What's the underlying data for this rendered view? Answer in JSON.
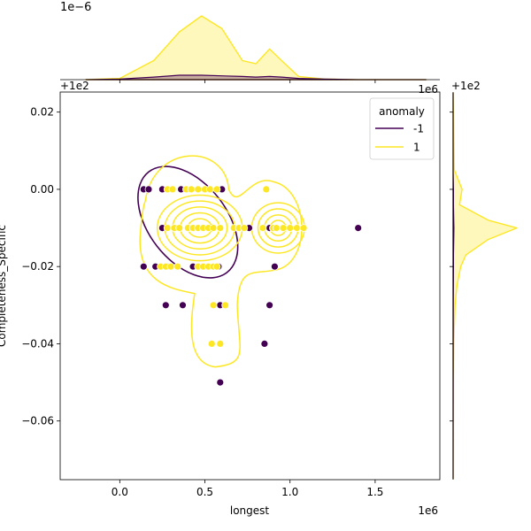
{
  "chart_data": {
    "type": "scatter",
    "title": "",
    "xlabel": "longest",
    "ylabel": "Completeness_Specific",
    "x_offset_label": "1e6",
    "y_offset_label": "+1e2",
    "y_offset_label_top": "+1e2",
    "y_offset_label_right": "+1e2",
    "x_scale_label_right": "1e6",
    "top_marginal_scale_label": "1e−6",
    "xlim": [
      -350000,
      1880000
    ],
    "ylim": [
      -0.0752,
      0.0252
    ],
    "x_ticks": [
      0,
      500000,
      1000000,
      1500000
    ],
    "x_tick_labels": [
      "0.0",
      "0.5",
      "1.0",
      "1.5"
    ],
    "y_ticks": [
      0.02,
      0.0,
      -0.02,
      -0.04,
      -0.06
    ],
    "y_tick_labels": [
      "0.02",
      "0.00",
      "−0.02",
      "−0.04",
      "−0.06"
    ],
    "grid": false,
    "legend": {
      "title": "anomaly",
      "placement": "top-right",
      "entries": [
        {
          "label": "-1",
          "color": "#440154"
        },
        {
          "label": "1",
          "color": "#fde725"
        }
      ]
    },
    "series": [
      {
        "name": "-1",
        "color": "#440154",
        "points": [
          [
            140000,
            0.0
          ],
          [
            170000,
            0.0
          ],
          [
            250000,
            0.0
          ],
          [
            360000,
            0.0
          ],
          [
            600000,
            0.0
          ],
          [
            250000,
            -0.01
          ],
          [
            760000,
            -0.01
          ],
          [
            880000,
            -0.01
          ],
          [
            1400000,
            -0.01
          ],
          [
            140000,
            -0.02
          ],
          [
            210000,
            -0.02
          ],
          [
            280000,
            -0.02
          ],
          [
            430000,
            -0.02
          ],
          [
            580000,
            -0.02
          ],
          [
            910000,
            -0.02
          ],
          [
            270000,
            -0.03
          ],
          [
            370000,
            -0.03
          ],
          [
            590000,
            -0.03
          ],
          [
            880000,
            -0.03
          ],
          [
            850000,
            -0.04
          ],
          [
            590000,
            -0.05
          ]
        ]
      },
      {
        "name": "1",
        "color": "#fde725",
        "points": [
          [
            280000,
            0.0
          ],
          [
            310000,
            0.0
          ],
          [
            390000,
            0.0
          ],
          [
            420000,
            0.0
          ],
          [
            460000,
            0.0
          ],
          [
            500000,
            0.0
          ],
          [
            530000,
            0.0
          ],
          [
            570000,
            0.0
          ],
          [
            860000,
            0.0
          ],
          [
            280000,
            -0.01
          ],
          [
            320000,
            -0.01
          ],
          [
            350000,
            -0.01
          ],
          [
            400000,
            -0.01
          ],
          [
            430000,
            -0.01
          ],
          [
            460000,
            -0.01
          ],
          [
            490000,
            -0.01
          ],
          [
            520000,
            -0.01
          ],
          [
            550000,
            -0.01
          ],
          [
            590000,
            -0.01
          ],
          [
            670000,
            -0.01
          ],
          [
            700000,
            -0.01
          ],
          [
            730000,
            -0.01
          ],
          [
            840000,
            -0.01
          ],
          [
            900000,
            -0.01
          ],
          [
            920000,
            -0.01
          ],
          [
            960000,
            -0.01
          ],
          [
            1000000,
            -0.01
          ],
          [
            1040000,
            -0.01
          ],
          [
            1080000,
            -0.01
          ],
          [
            240000,
            -0.02
          ],
          [
            270000,
            -0.02
          ],
          [
            300000,
            -0.02
          ],
          [
            340000,
            -0.02
          ],
          [
            460000,
            -0.02
          ],
          [
            490000,
            -0.02
          ],
          [
            520000,
            -0.02
          ],
          [
            550000,
            -0.02
          ],
          [
            570000,
            -0.02
          ],
          [
            550000,
            -0.03
          ],
          [
            620000,
            -0.03
          ],
          [
            540000,
            -0.04
          ],
          [
            590000,
            -0.04
          ]
        ]
      }
    ],
    "contours": [
      {
        "name": "-1",
        "color": "#440154",
        "cx": 400000,
        "cy": -0.0085,
        "rx": 230000,
        "ry": 0.0165,
        "rotation_deg": -38,
        "levels": [
          1
        ]
      },
      {
        "name": "1",
        "color": "#fde725",
        "blobs": [
          {
            "cx": 470000,
            "cy": -0.01,
            "rx": 250000,
            "ry": 0.0085,
            "levels": [
              1,
              0.82,
              0.64,
              0.46,
              0.28
            ]
          },
          {
            "cx": 930000,
            "cy": -0.01,
            "rx": 155000,
            "ry": 0.0065,
            "levels": [
              1,
              0.76,
              0.52,
              0.3
            ]
          }
        ],
        "outer_envelope": true
      }
    ],
    "top_marginal": {
      "x": [
        -200000,
        0,
        200000,
        350000,
        480000,
        600000,
        720000,
        800000,
        880000,
        950000,
        1050000,
        1200000,
        1400000,
        1800000
      ],
      "density_1": [
        0,
        0.02,
        0.3,
        0.75,
        1.0,
        0.8,
        0.3,
        0.25,
        0.48,
        0.3,
        0.05,
        0.01,
        0,
        0
      ],
      "density_neg1": [
        0,
        0.01,
        0.04,
        0.07,
        0.07,
        0.06,
        0.05,
        0.04,
        0.05,
        0.04,
        0.02,
        0.01,
        0,
        0
      ]
    },
    "right_marginal": {
      "y": [
        0.025,
        0.005,
        0.0,
        -0.004,
        -0.008,
        -0.01,
        -0.013,
        -0.017,
        -0.02,
        -0.025,
        -0.03,
        -0.04,
        -0.05,
        -0.075
      ],
      "density_1": [
        0,
        0.02,
        0.14,
        0.1,
        0.55,
        1.0,
        0.55,
        0.2,
        0.12,
        0.06,
        0.03,
        0.01,
        0,
        0
      ],
      "density_neg1": [
        0,
        0.0,
        0.005,
        0.005,
        0.01,
        0.012,
        0.01,
        0.005,
        0.006,
        0.004,
        0.003,
        0.002,
        0.001,
        0
      ]
    }
  }
}
